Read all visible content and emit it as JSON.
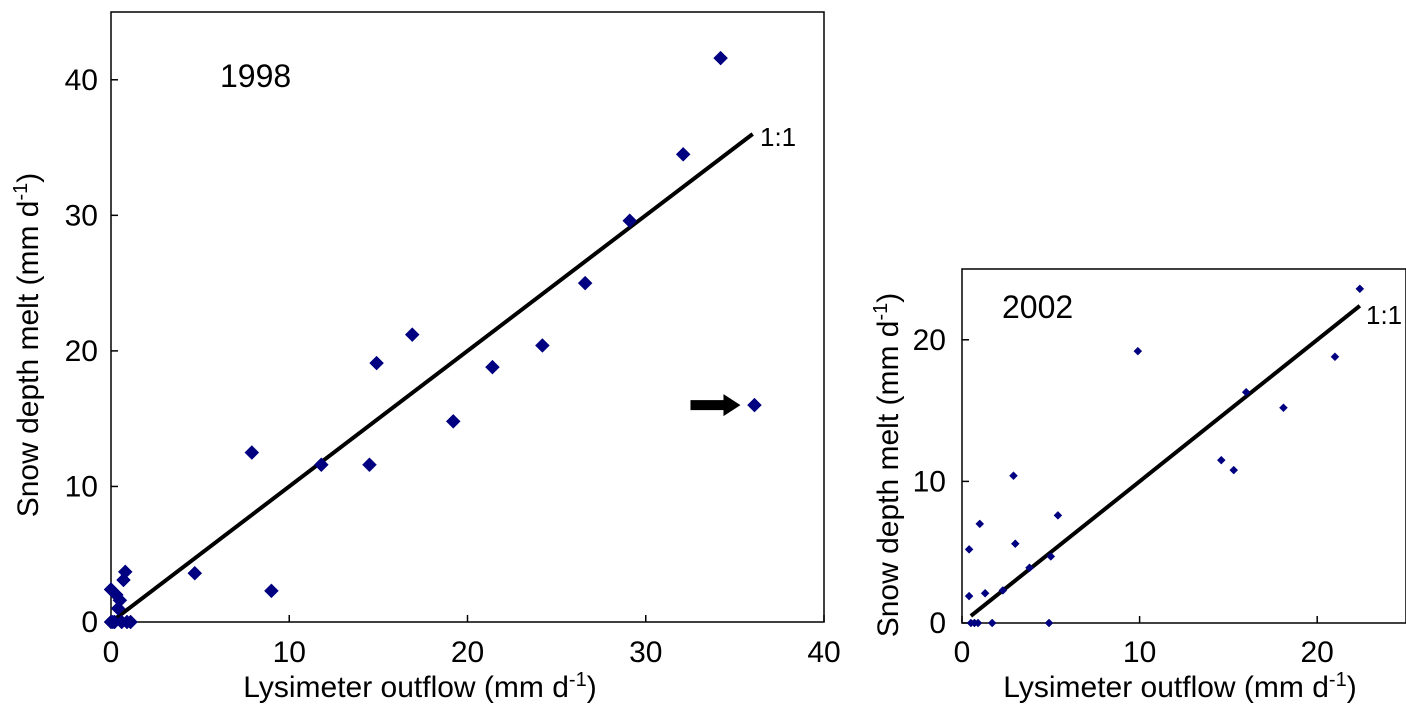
{
  "chart_data": [
    {
      "type": "scatter",
      "title": "1998",
      "xlabel": "Lysimeter outflow (mm d-1)",
      "ylabel": "Snow depth melt (mm d-1)",
      "xlim": [
        0,
        40
      ],
      "ylim": [
        0,
        45
      ],
      "xticks": [
        0,
        10,
        20,
        30,
        40
      ],
      "yticks": [
        0,
        10,
        20,
        30,
        40
      ],
      "grid": false,
      "marker_color": "#000080",
      "reference_line": {
        "label": "1:1",
        "from": [
          0,
          0
        ],
        "to": [
          36,
          36
        ]
      },
      "arrow_annotation": {
        "points_to": [
          36.1,
          16.0
        ]
      },
      "points": [
        {
          "x": 0.0,
          "y": 0.0
        },
        {
          "x": 0.1,
          "y": 0.0
        },
        {
          "x": 0.2,
          "y": 0.0
        },
        {
          "x": 0.0,
          "y": 2.4
        },
        {
          "x": 0.3,
          "y": 2.0
        },
        {
          "x": 0.5,
          "y": 1.6
        },
        {
          "x": 0.4,
          "y": 1.0
        },
        {
          "x": 0.6,
          "y": 0.0
        },
        {
          "x": 0.9,
          "y": 0.0
        },
        {
          "x": 1.1,
          "y": 0.0
        },
        {
          "x": 0.7,
          "y": 3.1
        },
        {
          "x": 0.8,
          "y": 3.7
        },
        {
          "x": 4.7,
          "y": 3.6
        },
        {
          "x": 7.9,
          "y": 12.5
        },
        {
          "x": 9.0,
          "y": 2.3
        },
        {
          "x": 11.8,
          "y": 11.6
        },
        {
          "x": 14.5,
          "y": 11.6
        },
        {
          "x": 14.9,
          "y": 19.1
        },
        {
          "x": 16.9,
          "y": 21.2
        },
        {
          "x": 19.2,
          "y": 14.8
        },
        {
          "x": 21.4,
          "y": 18.8
        },
        {
          "x": 24.2,
          "y": 20.4
        },
        {
          "x": 26.6,
          "y": 25.0
        },
        {
          "x": 29.1,
          "y": 29.6
        },
        {
          "x": 32.1,
          "y": 34.5
        },
        {
          "x": 34.2,
          "y": 41.6
        },
        {
          "x": 36.1,
          "y": 16.0
        }
      ]
    },
    {
      "type": "scatter",
      "title": "2002",
      "xlabel": "Lysimeter outflow (mm d-1)",
      "ylabel": "Snow depth melt (mm d-1)",
      "xlim": [
        0,
        25
      ],
      "ylim": [
        0,
        25
      ],
      "xticks": [
        0,
        10,
        20
      ],
      "yticks": [
        0,
        10,
        20
      ],
      "grid": false,
      "marker_color": "#000080",
      "reference_line": {
        "label": "1:1",
        "from": [
          0.5,
          0.5
        ],
        "to": [
          22.4,
          22.4
        ]
      },
      "points": [
        {
          "x": 0.4,
          "y": 5.2
        },
        {
          "x": 0.4,
          "y": 1.9
        },
        {
          "x": 0.5,
          "y": 0.0
        },
        {
          "x": 0.7,
          "y": 0.0
        },
        {
          "x": 0.9,
          "y": 0.0
        },
        {
          "x": 1.0,
          "y": 7.0
        },
        {
          "x": 1.3,
          "y": 2.1
        },
        {
          "x": 1.7,
          "y": 0.0
        },
        {
          "x": 2.9,
          "y": 10.4
        },
        {
          "x": 3.0,
          "y": 5.6
        },
        {
          "x": 3.8,
          "y": 3.9
        },
        {
          "x": 2.3,
          "y": 2.3
        },
        {
          "x": 4.9,
          "y": 0.0
        },
        {
          "x": 5.0,
          "y": 4.7
        },
        {
          "x": 5.4,
          "y": 7.6
        },
        {
          "x": 9.9,
          "y": 19.2
        },
        {
          "x": 14.6,
          "y": 11.5
        },
        {
          "x": 15.3,
          "y": 10.8
        },
        {
          "x": 16.0,
          "y": 16.3
        },
        {
          "x": 18.1,
          "y": 15.2
        },
        {
          "x": 21.0,
          "y": 18.8
        },
        {
          "x": 22.4,
          "y": 23.6
        }
      ]
    }
  ]
}
